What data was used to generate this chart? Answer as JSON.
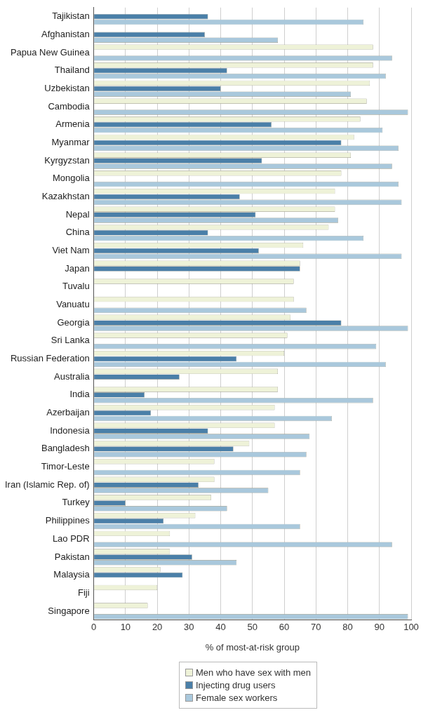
{
  "chart_data": {
    "type": "bar",
    "orientation": "horizontal",
    "xlabel": "% of most-at-risk group",
    "categories": [
      "Tajikistan",
      "Afghanistan",
      "Papua New Guinea",
      "Thailand",
      "Uzbekistan",
      "Cambodia",
      "Armenia",
      "Myanmar",
      "Kyrgyzstan",
      "Mongolia",
      "Kazakhstan",
      "Nepal",
      "China",
      "Viet Nam",
      "Japan",
      "Tuvalu",
      "Vanuatu",
      "Georgia",
      "Sri Lanka",
      "Russian Federation",
      "Australia",
      "India",
      "Azerbaijan",
      "Indonesia",
      "Bangladesh",
      "Timor-Leste",
      "Iran (Islamic Rep. of)",
      "Turkey",
      "Philippines",
      "Lao PDR",
      "Pakistan",
      "Malaysia",
      "Fiji",
      "Singapore"
    ],
    "series": [
      {
        "name": "Men who have sex with men",
        "color": "#eef2d8",
        "values": [
          null,
          null,
          88,
          88,
          87,
          86,
          84,
          82,
          81,
          78,
          76,
          76,
          74,
          66,
          65,
          63,
          63,
          62,
          61,
          60,
          58,
          58,
          57,
          57,
          49,
          38,
          38,
          37,
          32,
          24,
          24,
          21,
          20,
          17
        ]
      },
      {
        "name": "Injecting drug users",
        "color": "#4a7fa8",
        "values": [
          36,
          35,
          null,
          42,
          40,
          null,
          56,
          78,
          53,
          null,
          46,
          51,
          36,
          52,
          65,
          null,
          null,
          78,
          null,
          45,
          27,
          16,
          18,
          36,
          44,
          null,
          33,
          10,
          22,
          null,
          31,
          28,
          null,
          null
        ]
      },
      {
        "name": "Female sex workers",
        "color": "#a9c8dc",
        "values": [
          85,
          58,
          94,
          92,
          81,
          99,
          91,
          96,
          94,
          96,
          97,
          77,
          85,
          97,
          null,
          null,
          67,
          99,
          89,
          92,
          null,
          88,
          75,
          68,
          67,
          65,
          55,
          42,
          65,
          94,
          45,
          null,
          null,
          99
        ]
      }
    ],
    "xlim": [
      0,
      100
    ],
    "xticks": [
      0,
      10,
      20,
      30,
      40,
      50,
      60,
      70,
      80,
      90,
      100
    ],
    "grid": "x",
    "legend": "bottom"
  }
}
